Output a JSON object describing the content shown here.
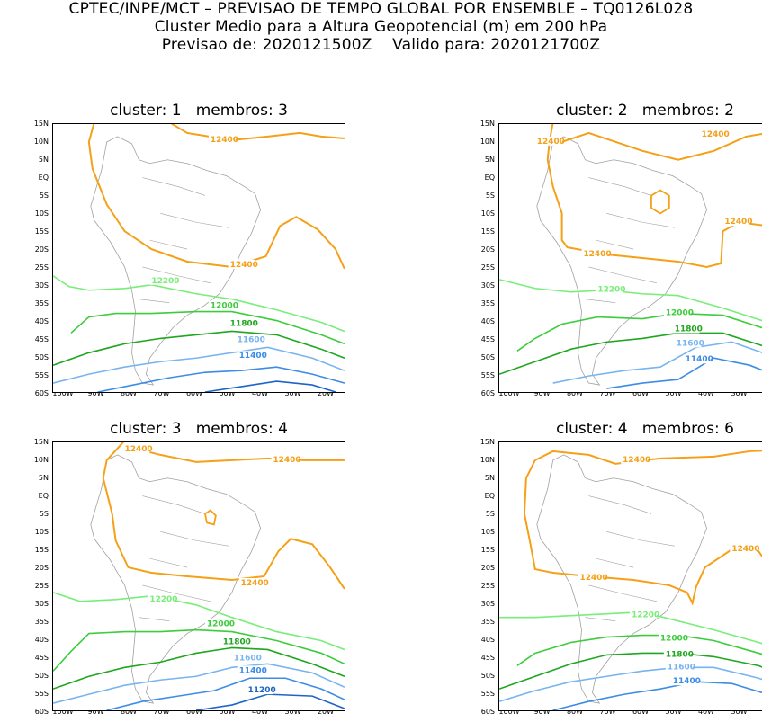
{
  "header": {
    "line1": "CPTEC/INPE/MCT – PREVISAO DE TEMPO GLOBAL POR ENSEMBLE – TQ0126L028",
    "line2": "Cluster Medio para a Altura Geopotencial (m) em 200 hPa",
    "line3": "Previsao de: 2020121500Z    Valido para: 2020121700Z"
  },
  "axes": {
    "y_ticks": [
      "15N",
      "10N",
      "5N",
      "EQ",
      "5S",
      "10S",
      "15S",
      "20S",
      "25S",
      "30S",
      "35S",
      "40S",
      "45S",
      "50S",
      "55S",
      "60S"
    ],
    "x_ticks": [
      "100W",
      "90W",
      "80W",
      "70W",
      "60W",
      "50W",
      "40W",
      "30W",
      "20W"
    ]
  },
  "colors": {
    "c12400": "#f5a016",
    "c12200": "#78ee78",
    "c12000": "#3ccc3c",
    "c11800": "#1ea61e",
    "c11600": "#78b4f0",
    "c11400": "#3c8ce6",
    "c11200": "#1e64c8",
    "land": "#a0a0a0"
  },
  "panels": [
    {
      "title": "cluster: 1   membros: 3",
      "labels": {
        "l12400a": "12400",
        "l12400b": "12400",
        "l12200": "12200",
        "l12000": "12000",
        "l11800": "11800",
        "l11600": "11600",
        "l11400": "11400"
      }
    },
    {
      "title": "cluster: 2   membros: 2",
      "labels": {
        "l12400a": "12400",
        "l12400b": "12400",
        "l12400c": "12400",
        "l12400d": "12400",
        "l12200": "12200",
        "l12000": "12000",
        "l11800": "11800",
        "l11600": "11600",
        "l11400": "11400"
      }
    },
    {
      "title": "cluster: 3   membros: 4",
      "labels": {
        "l12400a": "12400",
        "l12400b": "12400",
        "l12400c": "12400",
        "l12200": "12200",
        "l12000": "12000",
        "l11800": "11800",
        "l11600": "11600",
        "l11400": "11400",
        "l11200": "11200"
      }
    },
    {
      "title": "cluster: 4   membros: 6",
      "labels": {
        "l12400a": "12400",
        "l12400b": "12400",
        "l12400c": "12400",
        "l12200": "12200",
        "l12000": "12000",
        "l11800": "11800",
        "l11600": "11600",
        "l11400": "11400"
      }
    }
  ]
}
